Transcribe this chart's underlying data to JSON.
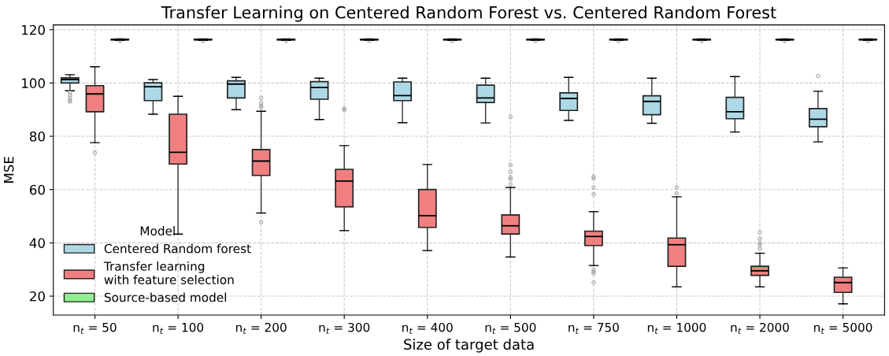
{
  "chart_data": {
    "type": "box",
    "title": "Transfer Learning on Centered Random Forest vs. Centered Random Forest",
    "xlabel": "Size of target data",
    "ylabel": "MSE",
    "legend_title": "Model",
    "legend": "bottom left",
    "grid": true,
    "categories": [
      "n$_{t}$ = 50",
      "n$_{t}$ = 100",
      "n$_{t}$ = 200",
      "n$_{t}$ = 300",
      "n$_{t}$ = 400",
      "n$_{t}$ = 500",
      "n$_{t}$ = 750",
      "n$_{t}$ = 1000",
      "n$_{t}$ = 2000",
      "n$_{t}$ = 5000"
    ],
    "ylim": [
      12.9,
      121.8
    ],
    "yticks": [
      20,
      40,
      60,
      80,
      100,
      120
    ],
    "series": [
      {
        "name": "Centered Random forest",
        "color": "#add8e6",
        "boxes": [
          {
            "low": 97.1,
            "q1": 100.0,
            "median": 101.3,
            "q3": 101.9,
            "high": 103.1,
            "outliers": [
              96.5,
              95.5,
              94.5,
              93.5,
              93.0
            ]
          },
          {
            "low": 88.3,
            "q1": 93.4,
            "median": 98.6,
            "q3": 100.1,
            "high": 101.3
          },
          {
            "low": 90.0,
            "q1": 94.4,
            "median": 99.6,
            "q3": 100.8,
            "high": 102.1
          },
          {
            "low": 86.3,
            "q1": 93.9,
            "median": 98.3,
            "q3": 100.5,
            "high": 101.8
          },
          {
            "low": 85.1,
            "q1": 93.4,
            "median": 95.3,
            "q3": 100.4,
            "high": 101.8
          },
          {
            "low": 85.0,
            "q1": 92.7,
            "median": 94.4,
            "q3": 99.2,
            "high": 101.8
          },
          {
            "low": 86.0,
            "q1": 89.7,
            "median": 94.2,
            "q3": 96.3,
            "high": 102.1
          },
          {
            "low": 84.9,
            "q1": 88.1,
            "median": 93.1,
            "q3": 95.2,
            "high": 101.8
          },
          {
            "low": 81.6,
            "q1": 86.6,
            "median": 89.2,
            "q3": 94.6,
            "high": 102.4
          },
          {
            "low": 77.9,
            "q1": 83.6,
            "median": 86.4,
            "q3": 90.4,
            "high": 96.9,
            "outliers": [
              102.6
            ]
          }
        ]
      },
      {
        "name": "Transfer learning\nwith feature selection",
        "color": "#f08080",
        "boxes": [
          {
            "low": 77.6,
            "q1": 89.2,
            "median": 95.9,
            "q3": 99.0,
            "high": 106.1,
            "outliers": [
              73.8
            ]
          },
          {
            "low": 43.3,
            "q1": 69.6,
            "median": 74.0,
            "q3": 88.3,
            "high": 95.0
          },
          {
            "low": 51.2,
            "q1": 65.3,
            "median": 70.7,
            "q3": 75.0,
            "high": 89.4,
            "outliers": [
              94.4,
              92.5,
              91.5,
              90.8,
              47.8
            ]
          },
          {
            "low": 44.6,
            "q1": 53.5,
            "median": 63.2,
            "q3": 67.6,
            "high": 76.5,
            "outliers": [
              90.4,
              89.9
            ]
          },
          {
            "low": 37.1,
            "q1": 45.8,
            "median": 50.2,
            "q3": 60.0,
            "high": 69.4
          },
          {
            "low": 34.7,
            "q1": 43.3,
            "median": 46.4,
            "q3": 50.5,
            "high": 60.8,
            "outliers": [
              87.3,
              69.2,
              66.7,
              64.6,
              63.9,
              62.0
            ]
          },
          {
            "low": 31.5,
            "q1": 39.0,
            "median": 42.4,
            "q3": 44.4,
            "high": 51.7,
            "outliers": [
              64.9,
              64.1,
              60.8,
              58.2,
              29.9,
              29.2,
              28.5,
              25.1
            ]
          },
          {
            "low": 23.5,
            "q1": 31.2,
            "median": 39.3,
            "q3": 41.8,
            "high": 57.3,
            "outliers": [
              60.8,
              58.6
            ]
          },
          {
            "low": 23.5,
            "q1": 27.8,
            "median": 29.5,
            "q3": 31.2,
            "high": 36.1,
            "outliers": [
              44.0,
              41.6,
              40.0,
              39.2,
              37.8
            ]
          },
          {
            "low": 17.1,
            "q1": 21.4,
            "median": 25.1,
            "q3": 27.1,
            "high": 30.6
          }
        ]
      },
      {
        "name": "Source-based model",
        "color": "#90ee90",
        "boxes": [
          {
            "low": 116.0,
            "q1": 116.2,
            "median": 116.3,
            "q3": 116.4,
            "high": 116.5,
            "outliers": [
              115.8
            ]
          },
          {
            "low": 116.0,
            "q1": 116.2,
            "median": 116.3,
            "q3": 116.4,
            "high": 116.5,
            "outliers": [
              115.8
            ]
          },
          {
            "low": 116.0,
            "q1": 116.2,
            "median": 116.3,
            "q3": 116.4,
            "high": 116.5,
            "outliers": [
              115.8
            ]
          },
          {
            "low": 116.0,
            "q1": 116.2,
            "median": 116.3,
            "q3": 116.4,
            "high": 116.5,
            "outliers": [
              115.8
            ]
          },
          {
            "low": 116.0,
            "q1": 116.2,
            "median": 116.3,
            "q3": 116.4,
            "high": 116.5,
            "outliers": [
              115.8
            ]
          },
          {
            "low": 116.0,
            "q1": 116.2,
            "median": 116.3,
            "q3": 116.4,
            "high": 116.5,
            "outliers": [
              115.8
            ]
          },
          {
            "low": 116.0,
            "q1": 116.2,
            "median": 116.3,
            "q3": 116.4,
            "high": 116.5,
            "outliers": [
              115.8
            ]
          },
          {
            "low": 116.0,
            "q1": 116.2,
            "median": 116.3,
            "q3": 116.4,
            "high": 116.5,
            "outliers": [
              115.8
            ]
          },
          {
            "low": 116.0,
            "q1": 116.2,
            "median": 116.3,
            "q3": 116.4,
            "high": 116.5,
            "outliers": [
              115.8
            ]
          },
          {
            "low": 116.0,
            "q1": 116.2,
            "median": 116.3,
            "q3": 116.4,
            "high": 116.5,
            "outliers": [
              115.8
            ]
          }
        ]
      }
    ]
  }
}
